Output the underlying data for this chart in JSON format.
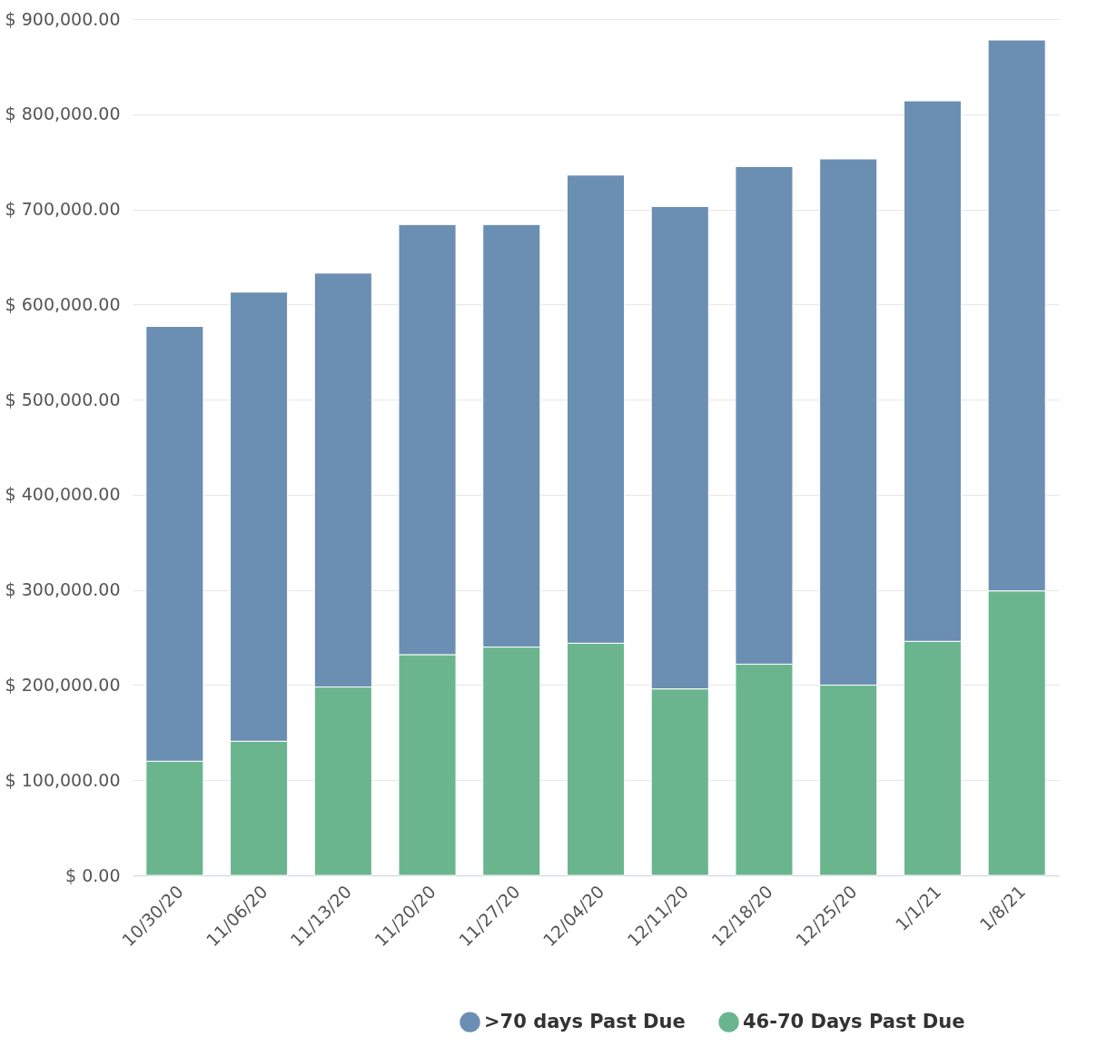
{
  "chart_data": {
    "type": "bar",
    "stacked": true,
    "categories": [
      "10/30/20",
      "11/06/20",
      "11/13/20",
      "11/20/20",
      "11/27/20",
      "12/04/20",
      "12/11/20",
      "12/18/20",
      "12/25/20",
      "1/1/21",
      "1/8/21"
    ],
    "series": [
      {
        "name": "46-70 Days Past Due",
        "color": "#6bb58e",
        "values": [
          120000,
          141000,
          198000,
          232000,
          240000,
          244000,
          196000,
          222000,
          200000,
          246000,
          299000
        ]
      },
      {
        "name": ">70 days Past Due",
        "color": "#6b8eb3",
        "values": [
          457000,
          472000,
          435000,
          452000,
          444000,
          492000,
          507000,
          523000,
          553000,
          568000,
          579000
        ]
      }
    ],
    "ylim": [
      0,
      900000
    ],
    "yticks": [
      {
        "value": 0,
        "label": "$ 0.00"
      },
      {
        "value": 100000,
        "label": "$ 100,000.00"
      },
      {
        "value": 200000,
        "label": "$ 200,000.00"
      },
      {
        "value": 300000,
        "label": "$ 300,000.00"
      },
      {
        "value": 400000,
        "label": "$ 400,000.00"
      },
      {
        "value": 500000,
        "label": "$ 500,000.00"
      },
      {
        "value": 600000,
        "label": "$ 600,000.00"
      },
      {
        "value": 700000,
        "label": "$ 700,000.00"
      },
      {
        "value": 800000,
        "label": "$ 800,000.00"
      },
      {
        "value": 900000,
        "label": "$ 900,000.00"
      }
    ],
    "grid": "y",
    "legend": "bottom right"
  }
}
